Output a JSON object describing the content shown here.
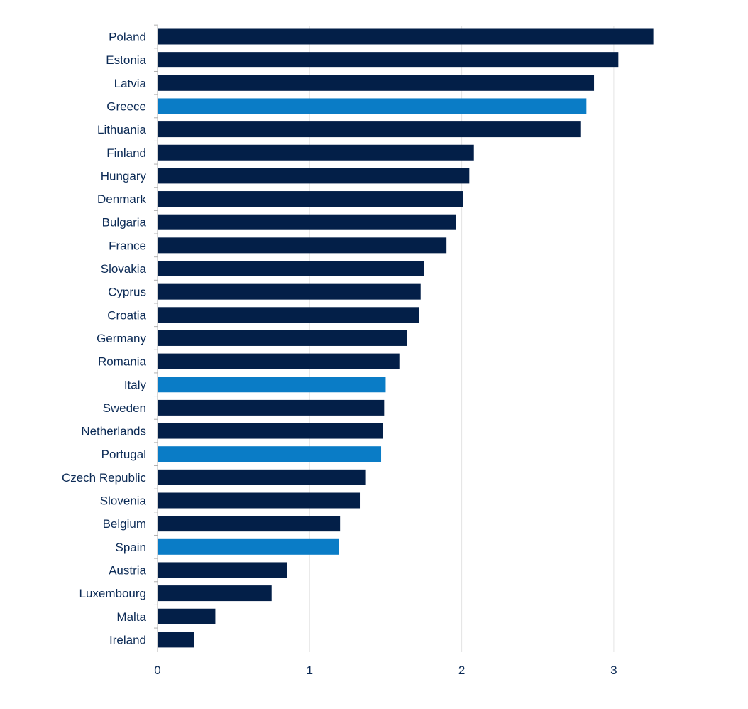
{
  "chart_data": {
    "type": "bar",
    "orientation": "horizontal",
    "title": "",
    "xlabel": "",
    "ylabel": "",
    "xlim": [
      0,
      3.4
    ],
    "xticks": [
      0,
      1,
      2,
      3
    ],
    "grid": "vertical",
    "legend": "none",
    "colors": {
      "default": "#031f48",
      "highlight": "#0a7cc6",
      "grid": "#e4e4e4",
      "axis": "#b0b0b0",
      "text": "#0b2a55"
    },
    "categories": [
      "Poland",
      "Estonia",
      "Latvia",
      "Greece",
      "Lithuania",
      "Finland",
      "Hungary",
      "Denmark",
      "Bulgaria",
      "France",
      "Slovakia",
      "Cyprus",
      "Croatia",
      "Germany",
      "Romania",
      "Italy",
      "Sweden",
      "Netherlands",
      "Portugal",
      "Czech Republic",
      "Slovenia",
      "Belgium",
      "Spain",
      "Austria",
      "Luxembourg",
      "Malta",
      "Ireland"
    ],
    "values": [
      3.26,
      3.03,
      2.87,
      2.82,
      2.78,
      2.08,
      2.05,
      2.01,
      1.96,
      1.9,
      1.75,
      1.73,
      1.72,
      1.64,
      1.59,
      1.5,
      1.49,
      1.48,
      1.47,
      1.37,
      1.33,
      1.2,
      1.19,
      0.85,
      0.75,
      0.38,
      0.24
    ],
    "highlighted": [
      "Greece",
      "Italy",
      "Portugal",
      "Spain"
    ]
  }
}
